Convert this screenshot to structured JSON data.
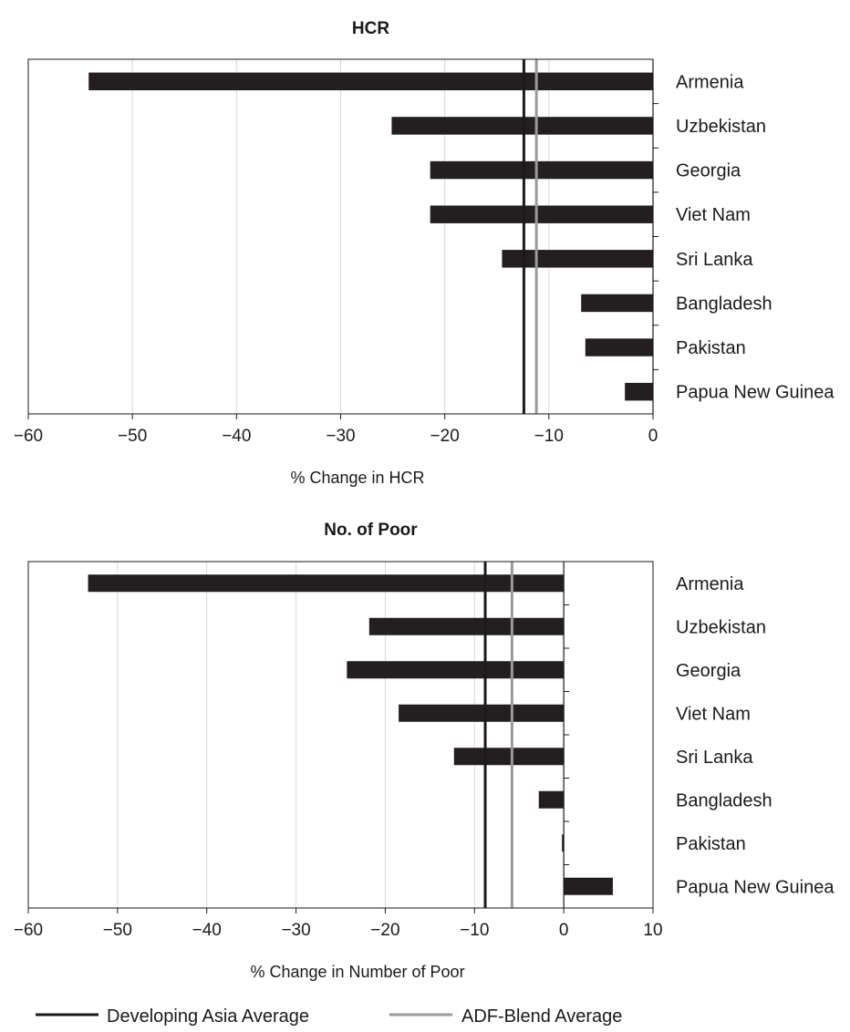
{
  "colors": {
    "bar": "#231f20",
    "developing_asia_line": "#1a1a1a",
    "adf_blend_line": "#9a9a9a",
    "gridline": "#d9d9d9"
  },
  "legend": [
    {
      "label": "Developing Asia Average",
      "color": "#1a1a1a"
    },
    {
      "label": "ADF-Blend Average",
      "color": "#9a9a9a"
    }
  ],
  "chart_data": [
    {
      "type": "bar",
      "orientation": "horizontal",
      "title": "HCR",
      "xlabel": "% Change in HCR",
      "ylabel": "",
      "xlim": [
        -60,
        0
      ],
      "xticks": [
        -60,
        -50,
        -40,
        -30,
        -20,
        -10,
        0
      ],
      "grid": true,
      "categories": [
        "Armenia",
        "Uzbekistan",
        "Georgia",
        "Viet Nam",
        "Sri Lanka",
        "Bangladesh",
        "Pakistan",
        "Papua New Guinea"
      ],
      "values": [
        -54.2,
        -25.1,
        -21.4,
        -21.4,
        -14.5,
        -6.9,
        -6.5,
        -2.7
      ],
      "reference_lines": [
        {
          "name": "Developing Asia Average",
          "value": -12.4
        },
        {
          "name": "ADF-Blend Average",
          "value": -11.2
        }
      ]
    },
    {
      "type": "bar",
      "orientation": "horizontal",
      "title": "No. of Poor",
      "xlabel": "% Change in Number of Poor",
      "ylabel": "",
      "xlim": [
        -60,
        10
      ],
      "xticks": [
        -60,
        -50,
        -40,
        -30,
        -20,
        -10,
        0,
        10
      ],
      "grid": true,
      "categories": [
        "Armenia",
        "Uzbekistan",
        "Georgia",
        "Viet Nam",
        "Sri Lanka",
        "Bangladesh",
        "Pakistan",
        "Papua New Guinea"
      ],
      "values": [
        -53.3,
        -21.8,
        -24.3,
        -18.5,
        -12.3,
        -2.8,
        -0.2,
        5.5
      ],
      "reference_lines": [
        {
          "name": "Developing Asia Average",
          "value": -8.8
        },
        {
          "name": "ADF-Blend Average",
          "value": -5.8
        }
      ]
    }
  ]
}
